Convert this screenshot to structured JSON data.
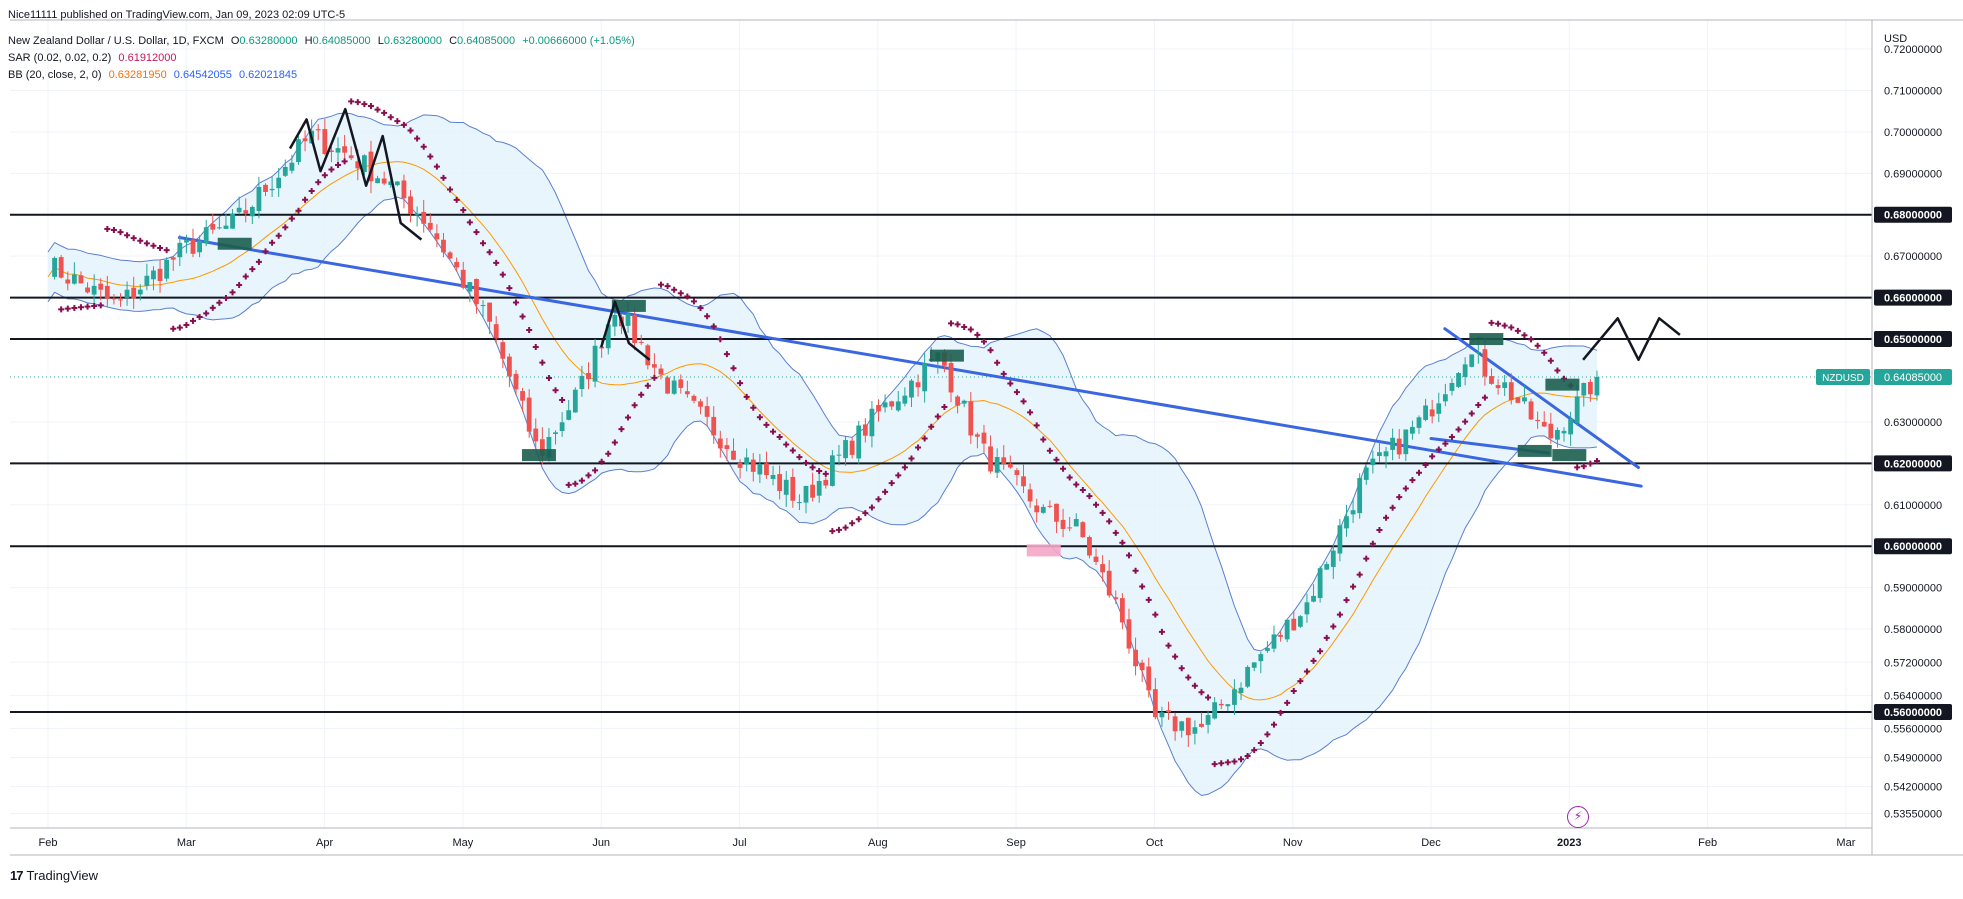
{
  "header": {
    "publish_line": "Nice11111 published on TradingView.com, Jan 09, 2023 02:09 UTC-5",
    "title": "New Zealand Dollar / U.S. Dollar, 1D, FXCM",
    "ohlc": {
      "o_label": "O",
      "o": "0.63280000",
      "h_label": "H",
      "h": "0.64085000",
      "l_label": "L",
      "l": "0.63280000",
      "c_label": "C",
      "c": "0.64085000",
      "change": "+0.00666000 (+1.05%)"
    },
    "sar_label": "SAR (0.02, 0.02, 0.2)",
    "sar_value": "0.61912000",
    "bb_label": "BB (20, close, 2, 0)",
    "bb_basis": "0.63281950",
    "bb_upper": "0.64542055",
    "bb_lower": "0.62021845"
  },
  "footer": {
    "logo_mark": "17",
    "logo_text": "TradingView"
  },
  "colors": {
    "bull": "#26a69a",
    "bear": "#ef5350",
    "sar": "#880e4f",
    "bb_line": "#5b7fd1",
    "bb_fill": "#e3f2fd",
    "basis": "#ff9800",
    "trend": "#3a66e0",
    "level": "#131722"
  },
  "chart_data": {
    "type": "candlestick",
    "symbol": "NZDUSD",
    "currency_label": "USD",
    "last_price_label": "0.64085000",
    "ylim": [
      0.532,
      0.727
    ],
    "y_ticks": [
      "0.72000000",
      "0.71000000",
      "0.70000000",
      "0.69000000",
      "0.67000000",
      "0.63000000",
      "0.61000000",
      "0.59000000",
      "0.58000000",
      "0.57200000",
      "0.56400000",
      "0.55600000",
      "0.54900000",
      "0.54200000",
      "0.53550000"
    ],
    "levels": [
      "0.68000000",
      "0.66000000",
      "0.65000000",
      "0.62000000",
      "0.60000000",
      "0.56000000"
    ],
    "x_labels": [
      "Feb",
      "Mar",
      "Apr",
      "May",
      "Jun",
      "Jul",
      "Aug",
      "Sep",
      "Oct",
      "Nov",
      "Dec",
      "2023",
      "Feb",
      "Mar"
    ],
    "anchors": [
      {
        "m": 0,
        "p": 0.668
      },
      {
        "m": 0.5,
        "p": 0.658
      },
      {
        "m": 1.0,
        "p": 0.672
      },
      {
        "m": 1.35,
        "p": 0.678
      },
      {
        "m": 1.9,
        "p": 0.699
      },
      {
        "m": 2.2,
        "p": 0.694
      },
      {
        "m": 2.45,
        "p": 0.688
      },
      {
        "m": 2.75,
        "p": 0.678
      },
      {
        "m": 3.2,
        "p": 0.653
      },
      {
        "m": 3.55,
        "p": 0.622
      },
      {
        "m": 3.85,
        "p": 0.638
      },
      {
        "m": 4.1,
        "p": 0.658
      },
      {
        "m": 4.45,
        "p": 0.64
      },
      {
        "m": 5.0,
        "p": 0.622
      },
      {
        "m": 5.45,
        "p": 0.611
      },
      {
        "m": 6.0,
        "p": 0.632
      },
      {
        "m": 6.45,
        "p": 0.646
      },
      {
        "m": 6.75,
        "p": 0.623
      },
      {
        "m": 7.2,
        "p": 0.608
      },
      {
        "m": 7.45,
        "p": 0.604
      },
      {
        "m": 7.75,
        "p": 0.584
      },
      {
        "m": 8.0,
        "p": 0.558
      },
      {
        "m": 8.35,
        "p": 0.556
      },
      {
        "m": 8.7,
        "p": 0.571
      },
      {
        "m": 9.1,
        "p": 0.586
      },
      {
        "m": 9.5,
        "p": 0.616
      },
      {
        "m": 9.95,
        "p": 0.631
      },
      {
        "m": 10.25,
        "p": 0.647
      },
      {
        "m": 10.55,
        "p": 0.638
      },
      {
        "m": 10.85,
        "p": 0.626
      },
      {
        "m": 11.05,
        "p": 0.634
      },
      {
        "m": 11.2,
        "p": 0.641
      }
    ],
    "trendlines": [
      {
        "from": [
          0.95,
          0.6745
        ],
        "to": [
          11.52,
          0.6145
        ]
      },
      {
        "from": [
          10.1,
          0.6525
        ],
        "to": [
          11.5,
          0.619
        ]
      },
      {
        "from": [
          10.85,
          0.6225
        ],
        "to": [
          10.0,
          0.626
        ]
      }
    ],
    "zigzags": [
      {
        "points": [
          [
            1.75,
            0.696
          ],
          [
            1.87,
            0.703
          ],
          [
            1.97,
            0.6905
          ],
          [
            2.15,
            0.7055
          ],
          [
            2.3,
            0.687
          ],
          [
            2.42,
            0.699
          ],
          [
            2.55,
            0.678
          ],
          [
            2.7,
            0.674
          ]
        ]
      },
      {
        "points": [
          [
            4.0,
            0.648
          ],
          [
            4.1,
            0.659
          ],
          [
            4.2,
            0.649
          ],
          [
            4.35,
            0.645
          ]
        ]
      },
      {
        "points": [
          [
            11.1,
            0.645
          ],
          [
            11.35,
            0.655
          ],
          [
            11.5,
            0.645
          ],
          [
            11.65,
            0.655
          ],
          [
            11.8,
            0.651
          ]
        ]
      }
    ],
    "boxes": [
      {
        "m": 1.35,
        "p": 0.673,
        "color": "#1b5e4f"
      },
      {
        "m": 3.55,
        "p": 0.622,
        "color": "#1b5e4f"
      },
      {
        "m": 4.2,
        "p": 0.658,
        "color": "#1b5e4f"
      },
      {
        "m": 6.5,
        "p": 0.646,
        "color": "#1b5e4f"
      },
      {
        "m": 7.2,
        "p": 0.599,
        "color": "#f4a6c8"
      },
      {
        "m": 10.4,
        "p": 0.65,
        "color": "#1b5e4f"
      },
      {
        "m": 10.75,
        "p": 0.623,
        "color": "#1b5e4f"
      },
      {
        "m": 10.95,
        "p": 0.639,
        "color": "#1b5e4f"
      },
      {
        "m": 11.0,
        "p": 0.622,
        "color": "#1b5e4f"
      }
    ]
  }
}
